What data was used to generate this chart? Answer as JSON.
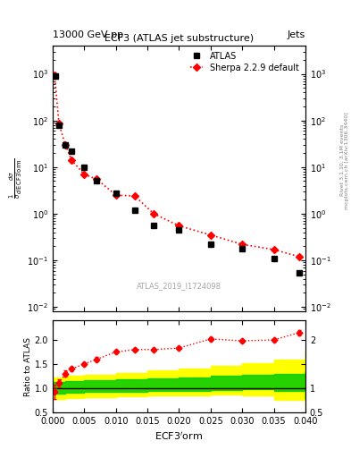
{
  "title_top": "13000 GeV pp",
  "title_top_right": "Jets",
  "plot_title": "ECF3 (ATLAS jet substructure)",
  "watermark": "ATLAS_2019_I1724098",
  "right_label": "Rivet 3.1.10, 3.1M events",
  "right_label2": "mcplots.cern.ch [arXiv:1306.3440]",
  "xlabel": "ECF3$^\\prime$orm",
  "ylabel_main": "$\\frac{1}{\\sigma}\\frac{d\\sigma}{d\\,\\mathrm{ECF3^{\\prime}orm}}$",
  "ylabel_ratio": "Ratio to ATLAS",
  "atlas_x": [
    0.0005,
    0.001,
    0.002,
    0.003,
    0.005,
    0.007,
    0.01,
    0.013,
    0.016,
    0.02,
    0.025,
    0.03,
    0.035,
    0.039
  ],
  "atlas_y": [
    900,
    80,
    30,
    22,
    10,
    5,
    2.8,
    1.2,
    0.55,
    0.45,
    0.22,
    0.18,
    0.11,
    0.055
  ],
  "sherpa_x": [
    0.0003,
    0.001,
    0.002,
    0.003,
    0.005,
    0.007,
    0.01,
    0.013,
    0.016,
    0.02,
    0.025,
    0.03,
    0.035,
    0.039
  ],
  "sherpa_y": [
    950,
    85,
    30,
    14,
    7,
    5.5,
    2.5,
    2.4,
    1.0,
    0.55,
    0.35,
    0.22,
    0.17,
    0.12
  ],
  "ratio_x": [
    0.0003,
    0.001,
    0.002,
    0.003,
    0.005,
    0.007,
    0.01,
    0.013,
    0.016,
    0.02,
    0.025,
    0.03,
    0.035,
    0.039
  ],
  "ratio_y": [
    0.92,
    1.1,
    1.3,
    1.4,
    1.5,
    1.6,
    1.75,
    1.8,
    1.8,
    1.83,
    2.02,
    1.98,
    2.0,
    2.15
  ],
  "ratio_yerr": [
    0.15,
    0.08,
    0.06,
    0.05,
    0.04,
    0.04,
    0.035,
    0.03,
    0.03,
    0.025,
    0.04,
    0.04,
    0.04,
    0.06
  ],
  "green_band_x": [
    0.0,
    0.002,
    0.005,
    0.01,
    0.015,
    0.02,
    0.025,
    0.03,
    0.035,
    0.04
  ],
  "green_band_lo": [
    0.88,
    0.9,
    0.92,
    0.93,
    0.94,
    0.95,
    0.96,
    0.97,
    0.95,
    0.78
  ],
  "green_band_hi": [
    1.12,
    1.14,
    1.16,
    1.18,
    1.2,
    1.22,
    1.25,
    1.28,
    1.3,
    1.35
  ],
  "yellow_band_x": [
    0.0,
    0.002,
    0.005,
    0.01,
    0.015,
    0.02,
    0.025,
    0.03,
    0.035,
    0.04
  ],
  "yellow_band_lo": [
    0.78,
    0.8,
    0.82,
    0.83,
    0.84,
    0.85,
    0.86,
    0.85,
    0.75,
    0.6
  ],
  "yellow_band_hi": [
    1.22,
    1.25,
    1.28,
    1.32,
    1.36,
    1.4,
    1.46,
    1.52,
    1.6,
    1.75
  ],
  "ylim_main": [
    0.008,
    4000
  ],
  "ylim_ratio": [
    0.5,
    2.4
  ],
  "xlim": [
    0.0,
    0.04
  ],
  "color_atlas": "#000000",
  "color_sherpa": "#FF0000",
  "color_green": "#00CC00",
  "color_yellow": "#FFFF00",
  "color_line": "#000000"
}
